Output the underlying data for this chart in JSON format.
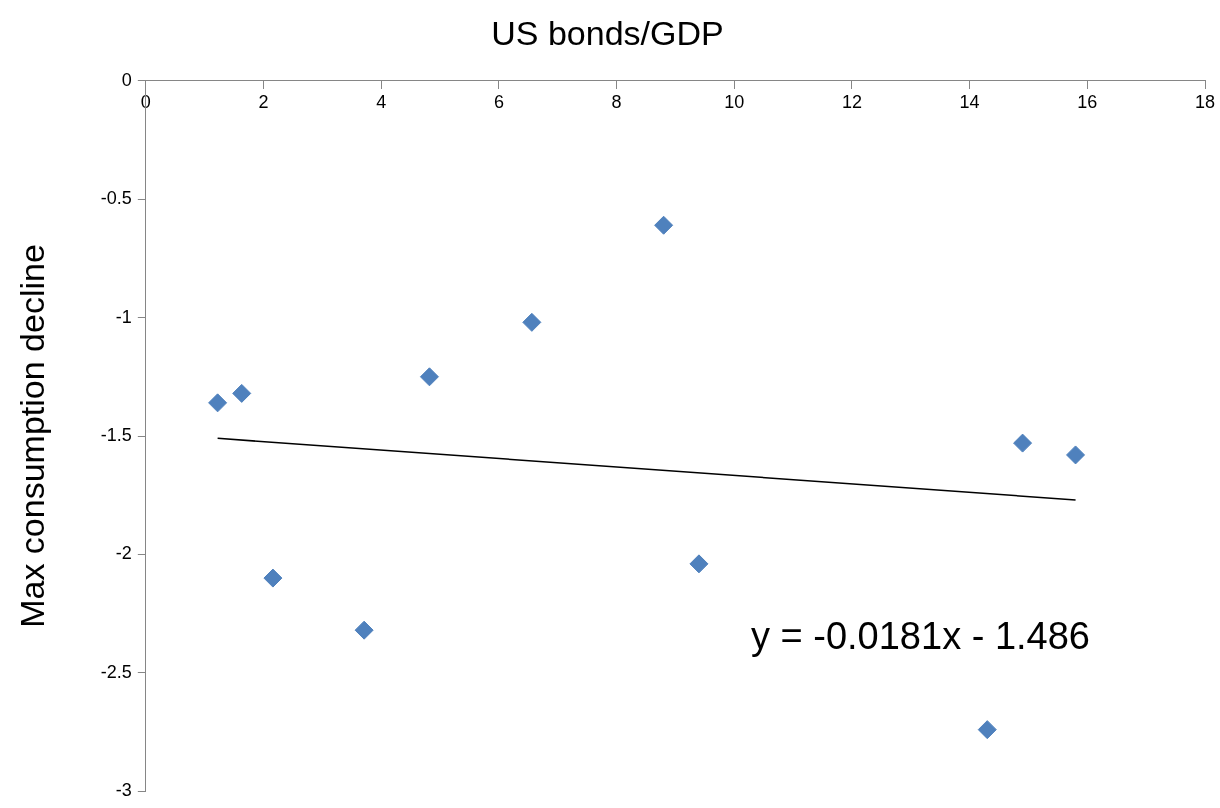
{
  "chart_data": {
    "type": "scatter",
    "title": "US bonds/GDP",
    "ylabel": "Max consumption decline",
    "series": [
      {
        "color": "#4f81bd",
        "marker": "diamond",
        "x": [
          1.22,
          1.63,
          2.16,
          3.71,
          4.82,
          6.56,
          8.8,
          9.4,
          14.3,
          14.9,
          15.8
        ],
        "values": [
          -1.36,
          -1.32,
          -2.1,
          -2.32,
          -1.25,
          -1.02,
          -0.61,
          -2.04,
          -2.74,
          -1.53,
          -1.58
        ]
      },
      {
        "type": "line",
        "color": "#000000",
        "marker": "none",
        "x": [
          1.22,
          15.8
        ],
        "values": [
          -1.51,
          -1.77
        ]
      }
    ],
    "xlim": [
      0,
      18
    ],
    "xticks": [
      0,
      2,
      4,
      6,
      8,
      10,
      12,
      14,
      16,
      18
    ],
    "ylim": [
      -3,
      0
    ],
    "yticks": [
      -3,
      -2.5,
      -2,
      -1.5,
      -1,
      -0.5,
      0
    ],
    "grid": false,
    "legend": false,
    "annotations": [
      "y = -0.0181x - 1.486"
    ]
  }
}
